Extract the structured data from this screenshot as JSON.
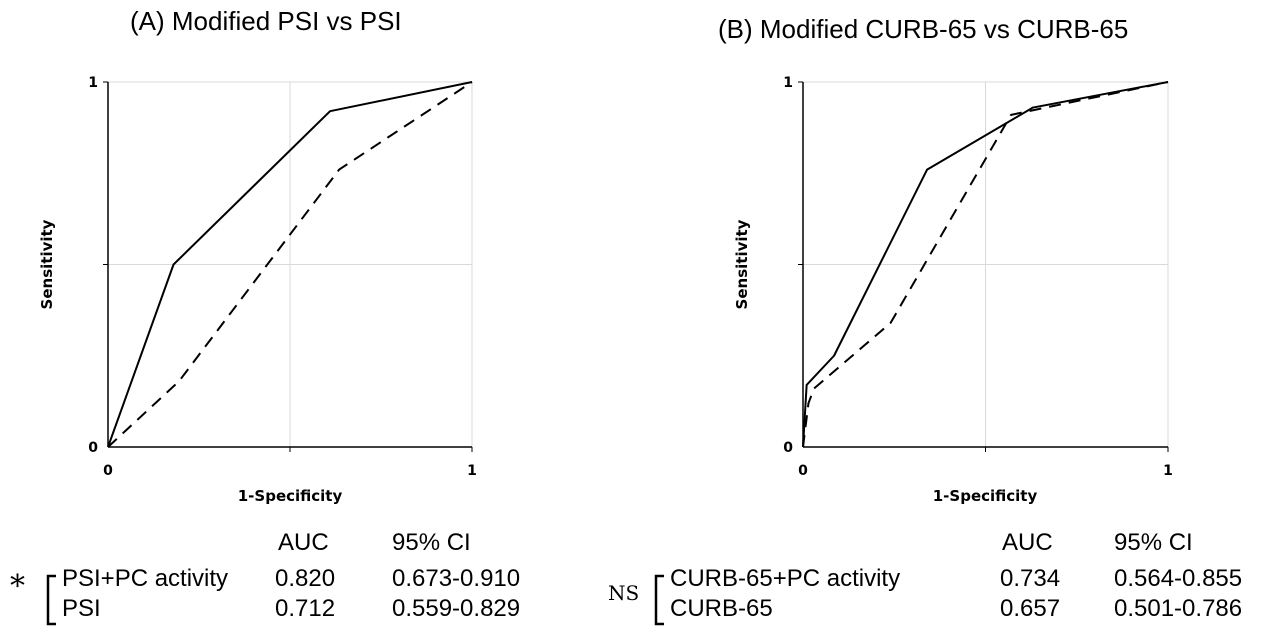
{
  "panels": [
    {
      "title": "(A) Modified PSI vs PSI",
      "table": {
        "headers": [
          "AUC",
          "95% CI"
        ],
        "comparison_symbol": "*",
        "rows": [
          {
            "name": "PSI+PC activity",
            "auc": "0.820",
            "ci": "0.673-0.910"
          },
          {
            "name": "PSI",
            "auc": "0.712",
            "ci": "0.559-0.829"
          }
        ]
      }
    },
    {
      "title": "(B) Modified CURB-65 vs CURB-65",
      "table": {
        "headers": [
          "AUC",
          "95% CI"
        ],
        "comparison_symbol": "NS",
        "rows": [
          {
            "name": "CURB-65+PC activity",
            "auc": "0.734",
            "ci": "0.564-0.855"
          },
          {
            "name": "CURB-65",
            "auc": "0.657",
            "ci": "0.501-0.786"
          }
        ]
      }
    }
  ],
  "chart_data": [
    {
      "type": "line",
      "title": "(A) Modified PSI vs PSI",
      "xlabel": "1-Specificity",
      "ylabel": "Sensitivity",
      "xlim": [
        0,
        1
      ],
      "ylim": [
        0,
        1
      ],
      "xticks": [
        "0",
        "1"
      ],
      "yticks": [
        "0",
        "1"
      ],
      "grid": "light vertical and horizontal lines at 0.5",
      "series": [
        {
          "style": "solid",
          "x": [
            0,
            0.18,
            0.61,
            1
          ],
          "y": [
            0,
            0.5,
            0.92,
            1
          ]
        },
        {
          "style": "dashed",
          "x": [
            0,
            0.195,
            0.635,
            1
          ],
          "y": [
            0,
            0.18,
            0.76,
            1
          ]
        }
      ]
    },
    {
      "type": "line",
      "title": "(B) Modified CURB-65 vs CURB-65",
      "xlabel": "1-Specificity",
      "ylabel": "Sensitivity",
      "xlim": [
        0,
        1
      ],
      "ylim": [
        0,
        1
      ],
      "xticks": [
        "0",
        "1"
      ],
      "yticks": [
        "0",
        "1"
      ],
      "grid": "light vertical and horizontal lines at 0.5",
      "series": [
        {
          "style": "solid",
          "x": [
            0,
            0.01,
            0.085,
            0.34,
            0.63,
            1
          ],
          "y": [
            0,
            0.17,
            0.25,
            0.76,
            0.93,
            1
          ]
        },
        {
          "style": "dashed",
          "x": [
            0,
            0.015,
            0.03,
            0.24,
            0.57,
            1
          ],
          "y": [
            0,
            0.12,
            0.16,
            0.34,
            0.91,
            1
          ]
        }
      ]
    }
  ]
}
